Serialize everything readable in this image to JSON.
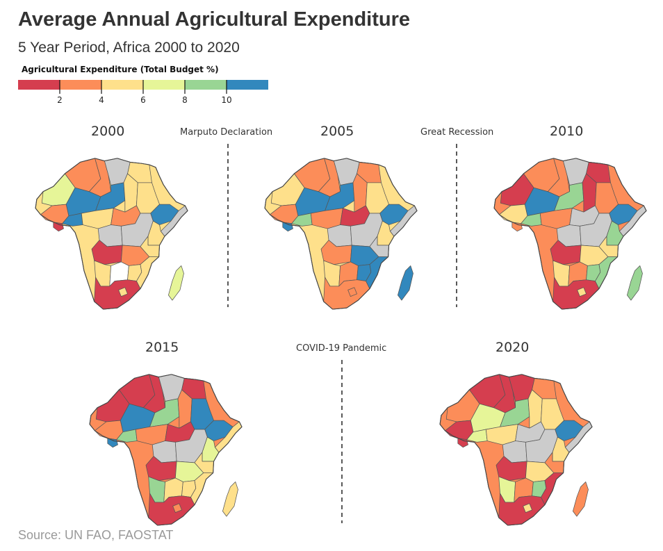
{
  "title": "Average Annual Agricultural Expenditure",
  "subtitle": "5 Year Period, Africa 2000 to 2020",
  "legend": {
    "title": "Agricultural Expenditure (Total Budget %)",
    "bins": [
      {
        "label": "< 2",
        "color": "#d53e4f"
      },
      {
        "label": "2–4",
        "color": "#fc8d59"
      },
      {
        "label": "4–6",
        "color": "#fee08b"
      },
      {
        "label": "6–8",
        "color": "#e6f598"
      },
      {
        "label": "8–10",
        "color": "#99d594"
      },
      {
        "label": "> 10",
        "color": "#3288bd"
      }
    ],
    "ticks": [
      "2",
      "4",
      "6",
      "8",
      "10"
    ],
    "no_data_color": "#cccccc"
  },
  "maps": [
    {
      "year": "2000",
      "base": "#fee08b",
      "regions": {
        "nw": "#e6f598",
        "nwBig": "#fc8d59",
        "algeria": "#fc8d59",
        "libya": "#cccccc",
        "egypt": "#fee08b",
        "sahel": "#3288bd",
        "niger": "#3288bd",
        "chad": "#fee08b",
        "sudan": "#fee08b",
        "westcoast": "#fc8d59",
        "coastA": "#3288bd",
        "coastB": "#d53e4f",
        "nigeria": "#fee08b",
        "car": "#fc8d59",
        "ethiopia": "#3288bd",
        "horn": "#cccccc",
        "centralA": "#cccccc",
        "congo": "#cccccc",
        "eastA": "#fee08b",
        "eastB": "#fee08b",
        "angola": "#d53e4f",
        "zambia": "#fc8d59",
        "mozambique": "#fee08b",
        "namibia": "#fee08b",
        "botswana": "#ffffff",
        "zimbabwe": "#fee08b",
        "southafrica": "#d53e4f",
        "madagascar": "#e6f598",
        "lesotho": "#fee08b"
      }
    },
    {
      "year": "2005",
      "base": "#fee08b",
      "regions": {
        "nw": "#fee08b",
        "nwBig": "#fc8d59",
        "algeria": "#fc8d59",
        "libya": "#cccccc",
        "egypt": "#fc8d59",
        "sahel": "#3288bd",
        "niger": "#3288bd",
        "chad": "#fc8d59",
        "sudan": "#fee08b",
        "westcoast": "#fc8d59",
        "coastA": "#99d594",
        "coastB": "#3288bd",
        "nigeria": "#fc8d59",
        "car": "#d53e4f",
        "ethiopia": "#3288bd",
        "horn": "#cccccc",
        "centralA": "#cccccc",
        "congo": "#cccccc",
        "eastA": "#fee08b",
        "eastB": "#cccccc",
        "angola": "#fc8d59",
        "zambia": "#3288bd",
        "mozambique": "#3288bd",
        "namibia": "#fee08b",
        "botswana": "#fc8d59",
        "zimbabwe": "#3288bd",
        "southafrica": "#fc8d59",
        "madagascar": "#3288bd",
        "lesotho": "#fc8d59"
      }
    },
    {
      "year": "2010",
      "base": "#fc8d59",
      "regions": {
        "nw": "#d53e4f",
        "nwBig": "#fc8d59",
        "algeria": "#fc8d59",
        "libya": "#cccccc",
        "egypt": "#d53e4f",
        "sahel": "#3288bd",
        "niger": "#99d594",
        "chad": "#d53e4f",
        "sudan": "#fc8d59",
        "westcoast": "#fee08b",
        "coastA": "#99d594",
        "coastB": "#fc8d59",
        "nigeria": "#fc8d59",
        "car": "#cccccc",
        "ethiopia": "#3288bd",
        "horn": "#cccccc",
        "centralA": "#cccccc",
        "congo": "#cccccc",
        "eastA": "#99d594",
        "eastB": "#fee08b",
        "angola": "#d53e4f",
        "zambia": "#fee08b",
        "mozambique": "#99d594",
        "namibia": "#fee08b",
        "botswana": "#fc8d59",
        "zimbabwe": "#99d594",
        "southafrica": "#d53e4f",
        "madagascar": "#99d594",
        "lesotho": "#fee08b"
      }
    },
    {
      "year": "2015",
      "base": "#fc8d59",
      "regions": {
        "nw": "#d53e4f",
        "nwBig": "#d53e4f",
        "algeria": "#d53e4f",
        "libya": "#cccccc",
        "egypt": "#d53e4f",
        "sahel": "#3288bd",
        "niger": "#99d594",
        "chad": "#fc8d59",
        "sudan": "#3288bd",
        "westcoast": "#fc8d59",
        "coastA": "#99d594",
        "coastB": "#3288bd",
        "nigeria": "#fc8d59",
        "car": "#d53e4f",
        "ethiopia": "#3288bd",
        "horn": "#fee08b",
        "centralA": "#cccccc",
        "congo": "#cccccc",
        "eastA": "#e6f598",
        "eastB": "#fee08b",
        "angola": "#d53e4f",
        "zambia": "#e6f598",
        "mozambique": "#fee08b",
        "namibia": "#99d594",
        "botswana": "#fee08b",
        "zimbabwe": "#fee08b",
        "southafrica": "#d53e4f",
        "madagascar": "#fee08b",
        "lesotho": "#fc8d59"
      }
    },
    {
      "year": "2020",
      "base": "#fc8d59",
      "regions": {
        "nw": "#fc8d59",
        "nwBig": "#d53e4f",
        "algeria": "#d53e4f",
        "libya": "#d53e4f",
        "egypt": "#fc8d59",
        "sahel": "#e6f598",
        "niger": "#99d594",
        "chad": "#fee08b",
        "sudan": "#fee08b",
        "westcoast": "#d53e4f",
        "coastA": "#e6f598",
        "coastB": "#d53e4f",
        "nigeria": "#fee08b",
        "car": "#cccccc",
        "ethiopia": "#3288bd",
        "horn": "#cccccc",
        "centralA": "#cccccc",
        "congo": "#cccccc",
        "eastA": "#fee08b",
        "eastB": "#fc8d59",
        "angola": "#d53e4f",
        "zambia": "#fee08b",
        "mozambique": "#d53e4f",
        "namibia": "#e6f598",
        "botswana": "#fc8d59",
        "zimbabwe": "#99d594",
        "southafrica": "#d53e4f",
        "madagascar": "#fc8d59",
        "lesotho": "#fee08b"
      }
    }
  ],
  "events": [
    {
      "label": "Marputo Declaration"
    },
    {
      "label": "Great Recession"
    },
    {
      "label": "COVID-19 Pandemic"
    }
  ],
  "source": "Source: UN FAO, FAOSTAT"
}
